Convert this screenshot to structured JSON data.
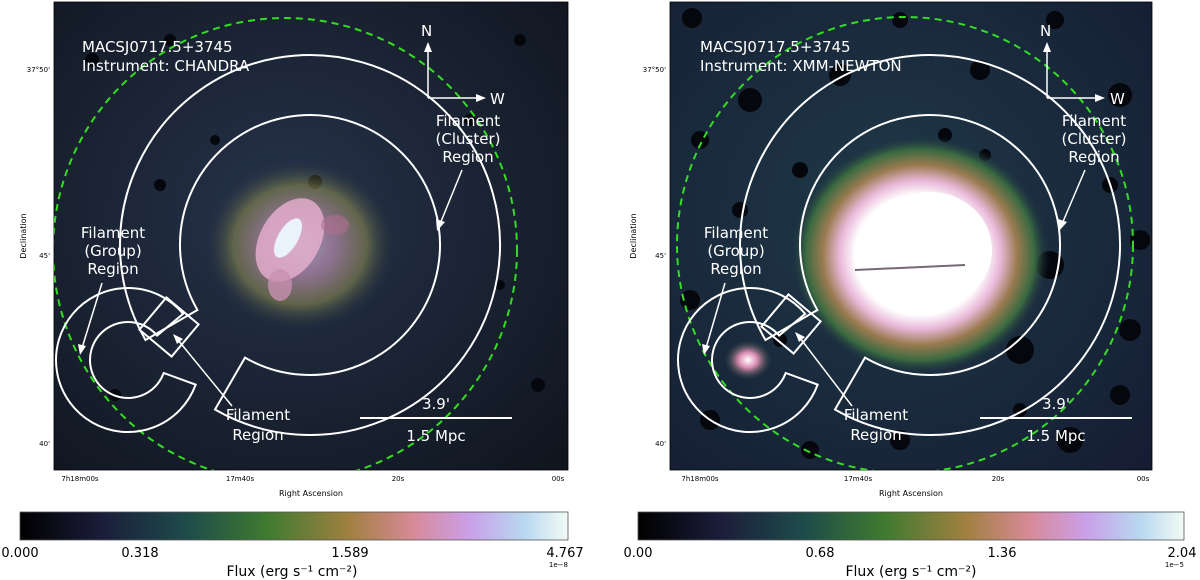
{
  "panels": [
    {
      "object": "MACSJ0717.5+3745",
      "instrument": "Instrument: CHANDRA",
      "north": "N",
      "west": "W",
      "cluster_region": [
        "Filament",
        "(Cluster)",
        "Region"
      ],
      "group_region": [
        "Filament",
        "(Group)",
        "Region"
      ],
      "filament_region": [
        "Filament",
        "Region"
      ],
      "scale_angle": "3.9'",
      "scale_distance": "1.5 Mpc",
      "ylabel": "Declination",
      "xlabel": "Right Ascension",
      "dec_ticks": [
        "37°50'",
        "45'",
        "40'"
      ],
      "ra_ticks": [
        "7h18m00s",
        "17m40s",
        "20s",
        "00s"
      ],
      "colorbar": {
        "ticks": [
          "0.000",
          "0.318",
          "1.589",
          "4.767"
        ],
        "exponent": "1e−8",
        "label": "Flux (erg s⁻¹ cm⁻²)"
      },
      "colors": {
        "background": "#141b2d",
        "core": "#f2e6f6",
        "ring": "#33dd22"
      }
    },
    {
      "object": "MACSJ0717.5+3745",
      "instrument": "Instrument: XMM-NEWTON",
      "north": "N",
      "west": "W",
      "cluster_region": [
        "Filament",
        "(Cluster)",
        "Region"
      ],
      "group_region": [
        "Filament",
        "(Group)",
        "Region"
      ],
      "filament_region": [
        "Filament",
        "Region"
      ],
      "scale_angle": "3.9'",
      "scale_distance": "1.5 Mpc",
      "ylabel": "Declination",
      "xlabel": "Right Ascension",
      "dec_ticks": [
        "37°50'",
        "45'",
        "40'"
      ],
      "ra_ticks": [
        "7h18m00s",
        "17m40s",
        "20s",
        "00s"
      ],
      "colorbar": {
        "ticks": [
          "0.00",
          "0.68",
          "1.36",
          "2.04"
        ],
        "exponent": "1e−5",
        "label": "Flux (erg s⁻¹ cm⁻²)"
      },
      "colors": {
        "background": "#1a2a44",
        "core": "#ffffff",
        "ring": "#33dd22"
      }
    }
  ]
}
